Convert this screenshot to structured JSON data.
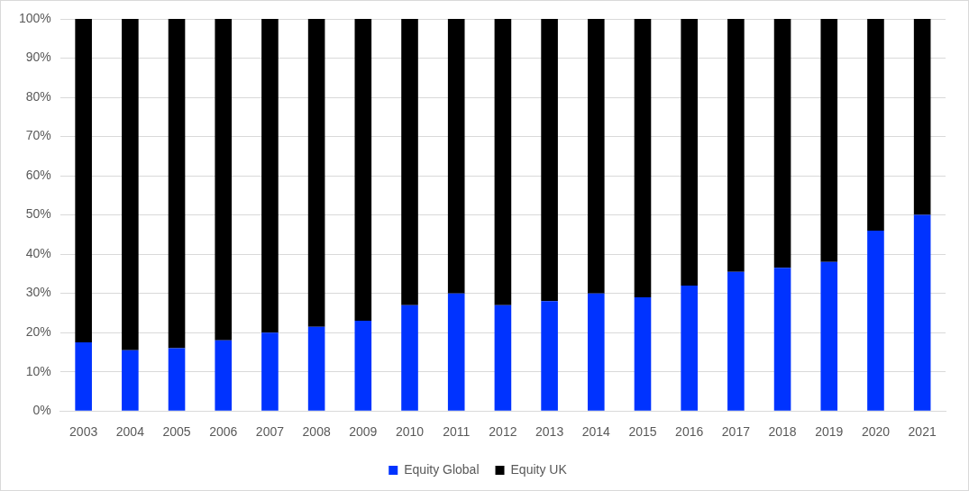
{
  "chart_data": {
    "type": "bar",
    "categories": [
      "2003",
      "2004",
      "2005",
      "2006",
      "2007",
      "2008",
      "2009",
      "2010",
      "2011",
      "2012",
      "2013",
      "2014",
      "2015",
      "2016",
      "2017",
      "2018",
      "2019",
      "2020",
      "2021"
    ],
    "series": [
      {
        "name": "Equity Global",
        "color": "#0033ff",
        "values": [
          17.5,
          15.5,
          16,
          18,
          20,
          21.5,
          23,
          27,
          30,
          27,
          28,
          30,
          29,
          32,
          35.5,
          36.5,
          38,
          46,
          50
        ]
      },
      {
        "name": "Equity UK",
        "color": "#000000",
        "values": [
          82.5,
          84.5,
          84,
          82,
          80,
          78.5,
          77,
          73,
          70,
          73,
          72,
          70,
          71,
          68,
          64.5,
          63.5,
          62,
          54,
          50
        ]
      }
    ],
    "ylim": [
      0,
      100
    ],
    "yticks": [
      {
        "value": 0,
        "label": "0%"
      },
      {
        "value": 10,
        "label": "10%"
      },
      {
        "value": 20,
        "label": "20%"
      },
      {
        "value": 30,
        "label": "30%"
      },
      {
        "value": 40,
        "label": "40%"
      },
      {
        "value": 50,
        "label": "50%"
      },
      {
        "value": 60,
        "label": "60%"
      },
      {
        "value": 70,
        "label": "70%"
      },
      {
        "value": 80,
        "label": "80%"
      },
      {
        "value": 90,
        "label": "90%"
      },
      {
        "value": 100,
        "label": "100%"
      }
    ],
    "stacked": true,
    "grid": true,
    "legend": "bottom"
  }
}
